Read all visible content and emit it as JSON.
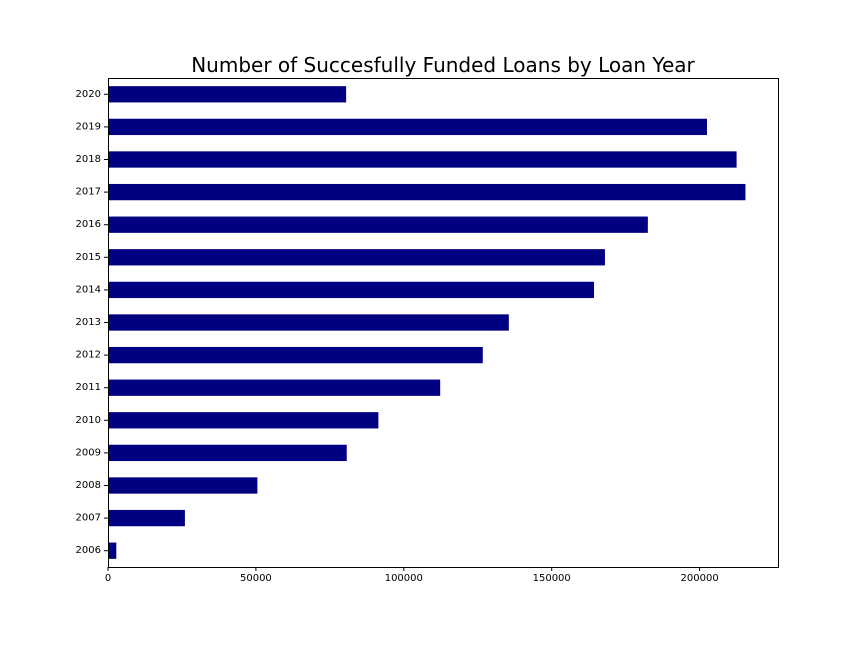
{
  "chart_data": {
    "type": "bar",
    "orientation": "horizontal",
    "title": "Number of Succesfully Funded Loans by Loan Year",
    "xlabel": "",
    "ylabel": "",
    "categories": [
      "2006",
      "2007",
      "2008",
      "2009",
      "2010",
      "2011",
      "2012",
      "2013",
      "2014",
      "2015",
      "2016",
      "2017",
      "2018",
      "2019",
      "2020"
    ],
    "values": [
      2800,
      26000,
      50500,
      80700,
      91400,
      112300,
      126700,
      135500,
      164300,
      168000,
      182500,
      215500,
      212500,
      202500,
      80500
    ],
    "xlim": [
      0,
      226500
    ],
    "x_ticks": [
      0,
      50000,
      100000,
      150000,
      200000
    ],
    "x_tick_labels": [
      "0",
      "50000",
      "100000",
      "150000",
      "200000"
    ],
    "grid": false,
    "legend": "none",
    "bar_color": "#000080"
  }
}
